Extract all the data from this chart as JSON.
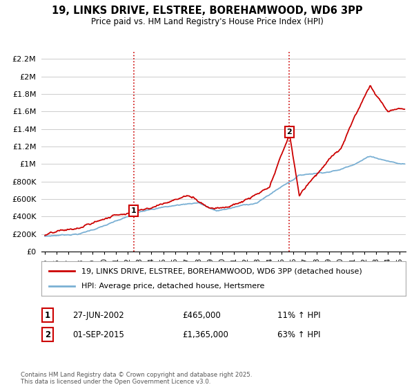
{
  "title": "19, LINKS DRIVE, ELSTREE, BOREHAMWOOD, WD6 3PP",
  "subtitle": "Price paid vs. HM Land Registry's House Price Index (HPI)",
  "ylim": [
    0,
    2300000
  ],
  "yticks": [
    0,
    200000,
    400000,
    600000,
    800000,
    1000000,
    1200000,
    1400000,
    1600000,
    1800000,
    2000000,
    2200000
  ],
  "ytick_labels": [
    "£0",
    "£200K",
    "£400K",
    "£600K",
    "£800K",
    "£1M",
    "£1.2M",
    "£1.4M",
    "£1.6M",
    "£1.8M",
    "£2M",
    "£2.2M"
  ],
  "xlim_start": 1994.7,
  "xlim_end": 2025.5,
  "purchase1_x": 2002.49,
  "purchase1_y": 465000,
  "purchase2_x": 2015.67,
  "purchase2_y": 1365000,
  "legend_line1": "19, LINKS DRIVE, ELSTREE, BOREHAMWOOD, WD6 3PP (detached house)",
  "legend_line2": "HPI: Average price, detached house, Hertsmere",
  "ann1_box": "1",
  "ann1_date": "27-JUN-2002",
  "ann1_price": "£465,000",
  "ann1_hpi": "11% ↑ HPI",
  "ann2_box": "2",
  "ann2_date": "01-SEP-2015",
  "ann2_price": "£1,365,000",
  "ann2_hpi": "63% ↑ HPI",
  "footer": "Contains HM Land Registry data © Crown copyright and database right 2025.\nThis data is licensed under the Open Government Licence v3.0.",
  "line1_color": "#cc0000",
  "line2_color": "#7ab0d4",
  "vline_color": "#cc0000",
  "grid_color": "#cccccc",
  "bg_color": "#ffffff",
  "legend_edge": "#aaaaaa"
}
